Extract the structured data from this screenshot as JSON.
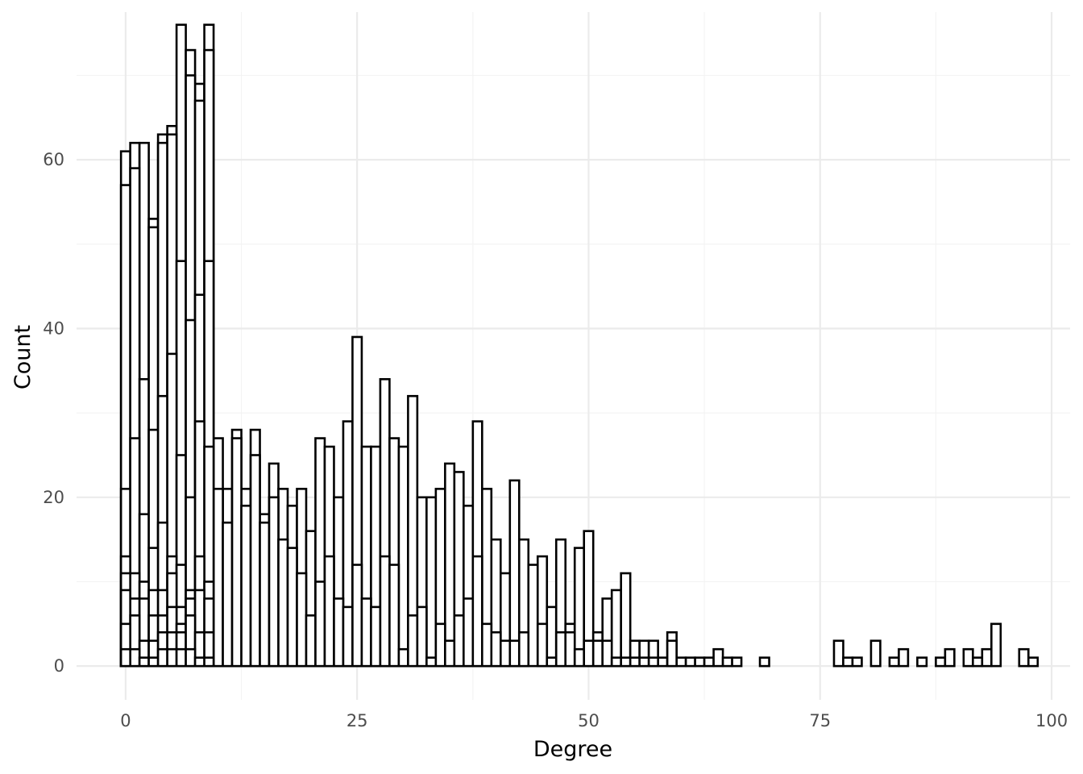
{
  "chart_data": {
    "type": "bar",
    "xlabel": "Degree",
    "ylabel": "Count",
    "xlim": [
      -5.3,
      102
    ],
    "ylim": [
      -4,
      77.5
    ],
    "x_ticks": [
      0,
      25,
      50,
      75,
      100
    ],
    "x_tick_labels": [
      "0",
      "25",
      "50",
      "75",
      "100"
    ],
    "y_ticks": [
      0,
      20,
      40,
      60
    ],
    "y_tick_labels": [
      "0",
      "20",
      "40",
      "60"
    ],
    "grid": true,
    "legend": "none",
    "bin_width": 1,
    "fill_color": "#ffffff",
    "outline_color": "#000000",
    "note": "Histogram of degree with overlapping (stacked) group outlines; several layers per bin near low degrees.",
    "layers": [
      {
        "bins": [
          [
            0,
            61
          ],
          [
            1,
            62
          ],
          [
            2,
            62
          ],
          [
            3,
            53
          ],
          [
            4,
            63
          ],
          [
            5,
            64
          ],
          [
            6,
            76
          ],
          [
            7,
            73
          ],
          [
            8,
            69
          ],
          [
            9,
            76
          ],
          [
            10,
            27
          ],
          [
            11,
            21
          ],
          [
            12,
            28
          ],
          [
            13,
            21
          ],
          [
            14,
            28
          ],
          [
            15,
            18
          ],
          [
            16,
            24
          ],
          [
            17,
            21
          ],
          [
            18,
            19
          ],
          [
            19,
            21
          ],
          [
            20,
            16
          ],
          [
            21,
            27
          ],
          [
            22,
            26
          ],
          [
            23,
            20
          ],
          [
            24,
            29
          ],
          [
            25,
            39
          ],
          [
            26,
            26
          ],
          [
            27,
            26
          ],
          [
            28,
            34
          ],
          [
            29,
            27
          ],
          [
            30,
            26
          ],
          [
            31,
            32
          ],
          [
            32,
            20
          ],
          [
            33,
            20
          ],
          [
            34,
            21
          ],
          [
            35,
            24
          ],
          [
            36,
            23
          ],
          [
            37,
            19
          ],
          [
            38,
            29
          ],
          [
            39,
            21
          ],
          [
            40,
            15
          ],
          [
            41,
            11
          ],
          [
            42,
            22
          ],
          [
            43,
            15
          ],
          [
            44,
            12
          ],
          [
            45,
            13
          ],
          [
            46,
            7
          ],
          [
            47,
            15
          ],
          [
            48,
            5
          ],
          [
            49,
            14
          ],
          [
            50,
            16
          ],
          [
            51,
            4
          ],
          [
            52,
            8
          ],
          [
            53,
            9
          ],
          [
            54,
            11
          ],
          [
            55,
            3
          ],
          [
            56,
            3
          ],
          [
            57,
            3
          ],
          [
            58,
            1
          ],
          [
            59,
            4
          ],
          [
            60,
            1
          ],
          [
            61,
            1
          ],
          [
            62,
            1
          ],
          [
            63,
            1
          ],
          [
            64,
            2
          ],
          [
            65,
            1
          ],
          [
            66,
            1
          ],
          [
            69,
            1
          ],
          [
            77,
            3
          ],
          [
            78,
            1
          ],
          [
            79,
            1
          ],
          [
            81,
            3
          ],
          [
            83,
            1
          ],
          [
            84,
            2
          ],
          [
            86,
            1
          ],
          [
            88,
            1
          ],
          [
            89,
            2
          ],
          [
            91,
            2
          ],
          [
            92,
            1
          ],
          [
            93,
            2
          ],
          [
            94,
            5
          ],
          [
            97,
            2
          ],
          [
            98,
            1
          ]
        ]
      },
      {
        "bins": [
          [
            0,
            57
          ],
          [
            1,
            59
          ],
          [
            2,
            34
          ],
          [
            3,
            52
          ],
          [
            4,
            62
          ],
          [
            5,
            63
          ],
          [
            6,
            48
          ],
          [
            7,
            70
          ],
          [
            8,
            67
          ],
          [
            9,
            73
          ],
          [
            10,
            21
          ],
          [
            11,
            17
          ],
          [
            12,
            27
          ],
          [
            13,
            19
          ],
          [
            14,
            25
          ],
          [
            15,
            17
          ],
          [
            16,
            20
          ],
          [
            17,
            15
          ],
          [
            18,
            14
          ],
          [
            19,
            11
          ],
          [
            20,
            6
          ],
          [
            21,
            10
          ],
          [
            22,
            13
          ],
          [
            23,
            8
          ],
          [
            24,
            7
          ],
          [
            25,
            12
          ],
          [
            26,
            8
          ],
          [
            27,
            7
          ],
          [
            28,
            13
          ],
          [
            29,
            12
          ],
          [
            30,
            2
          ],
          [
            31,
            6
          ],
          [
            32,
            7
          ],
          [
            33,
            1
          ],
          [
            34,
            5
          ],
          [
            35,
            3
          ],
          [
            36,
            6
          ],
          [
            37,
            8
          ],
          [
            38,
            13
          ],
          [
            39,
            5
          ],
          [
            40,
            4
          ],
          [
            41,
            3
          ],
          [
            42,
            3
          ],
          [
            43,
            4
          ],
          [
            44,
            0
          ],
          [
            45,
            5
          ],
          [
            46,
            1
          ],
          [
            47,
            4
          ],
          [
            48,
            4
          ],
          [
            49,
            2
          ],
          [
            50,
            3
          ],
          [
            51,
            3
          ],
          [
            52,
            3
          ],
          [
            53,
            1
          ],
          [
            54,
            1
          ],
          [
            55,
            1
          ],
          [
            56,
            1
          ],
          [
            57,
            1
          ],
          [
            58,
            0
          ],
          [
            59,
            3
          ]
        ]
      },
      {
        "bins": [
          [
            0,
            21
          ],
          [
            1,
            27
          ],
          [
            2,
            18
          ],
          [
            3,
            28
          ],
          [
            4,
            32
          ],
          [
            5,
            37
          ],
          [
            6,
            25
          ],
          [
            7,
            41
          ],
          [
            8,
            44
          ],
          [
            9,
            48
          ],
          [
            10,
            0
          ],
          [
            11,
            0
          ],
          [
            12,
            0
          ]
        ]
      },
      {
        "bins": [
          [
            0,
            13
          ],
          [
            1,
            11
          ],
          [
            2,
            10
          ],
          [
            3,
            14
          ],
          [
            4,
            17
          ],
          [
            5,
            13
          ],
          [
            6,
            12
          ],
          [
            7,
            20
          ],
          [
            8,
            29
          ],
          [
            9,
            26
          ]
        ]
      },
      {
        "bins": [
          [
            0,
            11
          ],
          [
            1,
            8
          ],
          [
            2,
            8
          ],
          [
            3,
            9
          ],
          [
            4,
            9
          ],
          [
            5,
            11
          ],
          [
            6,
            7
          ],
          [
            7,
            9
          ],
          [
            8,
            13
          ],
          [
            9,
            10
          ]
        ]
      },
      {
        "bins": [
          [
            0,
            9
          ],
          [
            1,
            6
          ],
          [
            2,
            3
          ],
          [
            3,
            6
          ],
          [
            4,
            6
          ],
          [
            5,
            7
          ],
          [
            6,
            5
          ],
          [
            7,
            8
          ],
          [
            8,
            9
          ],
          [
            9,
            8
          ]
        ]
      },
      {
        "bins": [
          [
            0,
            5
          ],
          [
            1,
            2
          ],
          [
            2,
            1
          ],
          [
            3,
            3
          ],
          [
            4,
            4
          ],
          [
            5,
            4
          ],
          [
            6,
            4
          ],
          [
            7,
            6
          ],
          [
            8,
            4
          ],
          [
            9,
            4
          ]
        ]
      },
      {
        "bins": [
          [
            0,
            2
          ],
          [
            1,
            0
          ],
          [
            2,
            0
          ],
          [
            3,
            1
          ],
          [
            4,
            2
          ],
          [
            5,
            2
          ],
          [
            6,
            2
          ],
          [
            7,
            2
          ],
          [
            8,
            1
          ],
          [
            9,
            1
          ]
        ]
      }
    ]
  }
}
